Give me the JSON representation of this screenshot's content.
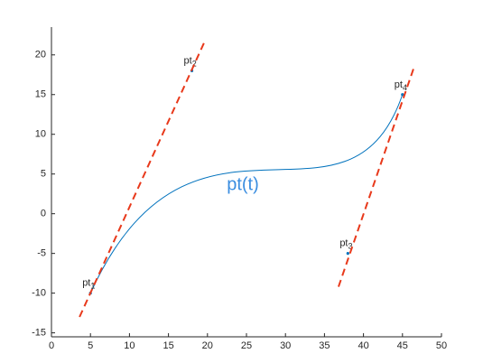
{
  "chart_data": {
    "type": "line",
    "xlim": [
      0,
      50
    ],
    "ylim": [
      -15.5,
      23.5
    ],
    "xticks": [
      0,
      5,
      10,
      15,
      20,
      25,
      30,
      35,
      40,
      45,
      50
    ],
    "yticks": [
      -15,
      -10,
      -5,
      0,
      5,
      10,
      15,
      20
    ],
    "curve_label": "pt(t)",
    "series": [
      {
        "style": "bezier",
        "color": "#0072bd",
        "x": [
          5,
          18,
          38,
          45
        ],
        "values": [
          -10,
          18,
          -5,
          15
        ]
      },
      {
        "style": "dashed",
        "color": "#e8391b",
        "x": [
          3.6,
          19.6
        ],
        "values": [
          -13,
          21.6
        ]
      },
      {
        "style": "dashed",
        "color": "#e8391b",
        "x": [
          36.8,
          46.5
        ],
        "values": [
          -9.2,
          18.5
        ]
      }
    ],
    "point_labels": [
      {
        "text": "pt",
        "sub": "1"
      },
      {
        "text": "pt",
        "sub": "2"
      },
      {
        "text": "pt",
        "sub": "3"
      },
      {
        "text": "pt",
        "sub": "4"
      }
    ]
  }
}
